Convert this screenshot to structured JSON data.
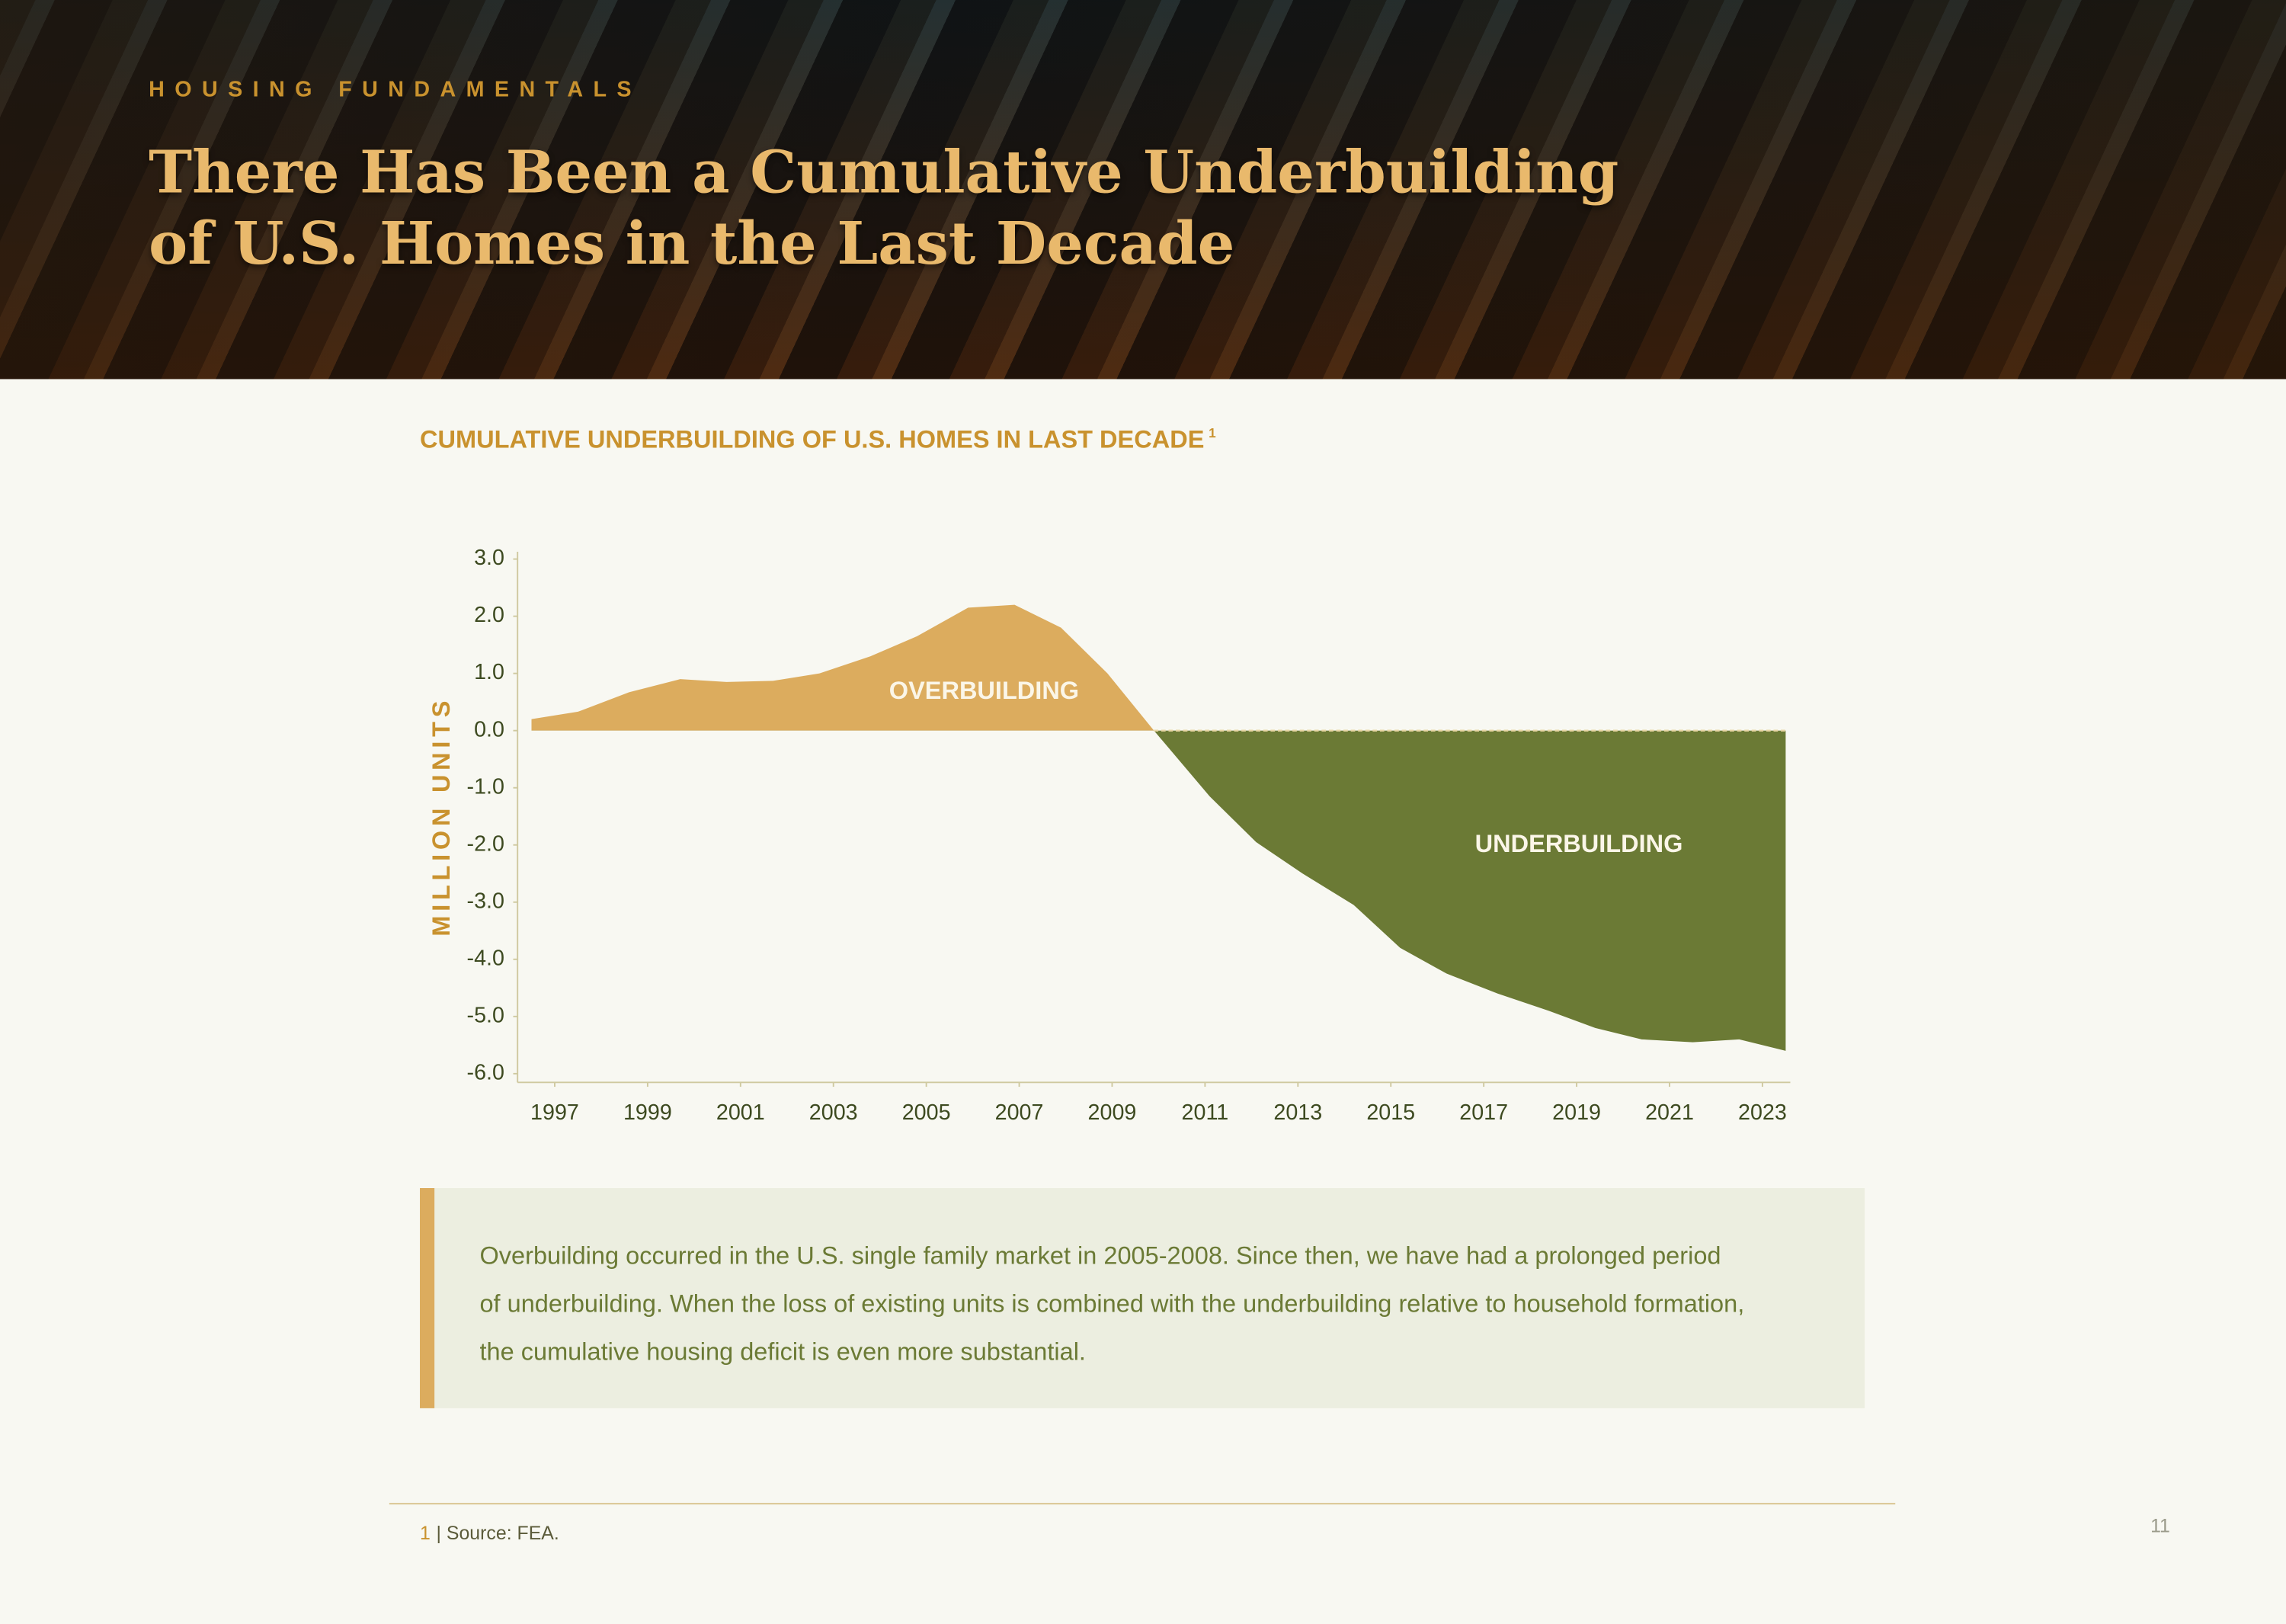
{
  "header": {
    "kicker": "HOUSING FUNDAMENTALS",
    "title_lines": [
      "There Has Been a Cumulative Underbuilding",
      "of U.S. Homes in the Last Decade"
    ]
  },
  "chart_data": {
    "type": "area",
    "title": "CUMULATIVE UNDERBUILDING OF U.S. HOMES IN LAST DECADE",
    "title_note": "1",
    "y_label": "MILLION UNITS",
    "x": [
      1996.5,
      1997.5,
      1998.6,
      1999.7,
      2000.7,
      2001.7,
      2002.7,
      2003.8,
      2004.8,
      2005.9,
      2006.9,
      2007.9,
      2008.9,
      2009.9,
      2011.1,
      2012.1,
      2013.1,
      2014.2,
      2015.2,
      2016.2,
      2017.3,
      2018.4,
      2019.4,
      2020.4,
      2021.5,
      2022.5,
      2023.5
    ],
    "values": [
      0.2,
      0.33,
      0.67,
      0.9,
      0.85,
      0.87,
      1.0,
      1.3,
      1.65,
      2.15,
      2.2,
      1.8,
      1.0,
      0.0,
      -1.15,
      -1.95,
      -2.5,
      -3.05,
      -3.8,
      -4.25,
      -4.6,
      -4.9,
      -5.2,
      -5.4,
      -5.45,
      -5.4,
      -5.6
    ],
    "positive_color": "#dcac5e",
    "negative_color": "#6b7a35",
    "annotations": [
      "OVERBUILDING",
      "UNDERBUILDING"
    ],
    "xlim": [
      1996.2,
      2023.6
    ],
    "xticks": [
      1997,
      1999,
      2001,
      2003,
      2005,
      2007,
      2009,
      2011,
      2013,
      2015,
      2017,
      2019,
      2021,
      2023
    ],
    "ylim": [
      -6,
      3
    ],
    "yticks": [
      {
        "value": 3,
        "label": "3.0"
      },
      {
        "value": 2,
        "label": "2.0"
      },
      {
        "value": 1,
        "label": "1.0"
      },
      {
        "value": 0,
        "label": "0.0"
      },
      {
        "value": -1,
        "label": "-1.0"
      },
      {
        "value": -2,
        "label": "-2.0"
      },
      {
        "value": -3,
        "label": "-3.0"
      },
      {
        "value": -4,
        "label": "-4.0"
      },
      {
        "value": -5,
        "label": "-5.0"
      },
      {
        "value": -6,
        "label": "-6.0"
      }
    ]
  },
  "callout": {
    "text": "Overbuilding occurred in the U.S. single family market in 2005-2008. Since then, we have had a prolonged period of underbuilding. When the loss of existing units is combined with the underbuilding relative to household formation, the cumulative housing deficit is even more substantial."
  },
  "footnote": {
    "number": "1",
    "text": "| Source: FEA."
  },
  "page_number": "11"
}
